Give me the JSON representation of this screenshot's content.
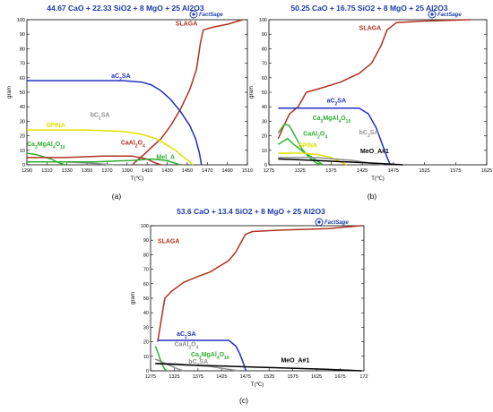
{
  "chart_data": [
    {
      "type": "line",
      "panel_label": "(a)",
      "title": "44.67 CaO +  22.33 SiO2 +  8 MgO +  25 Al2O3",
      "xlabel": "T(℃)",
      "ylabel": "gram",
      "xlim": [
        1290,
        1520
      ],
      "ylim": [
        0,
        100
      ],
      "x_ticks": [
        "1290",
        "1310",
        "1330",
        "1350",
        "1370",
        "1390",
        "1410",
        "1430",
        "1450",
        "1470",
        "1490",
        "1510"
      ],
      "y_ticks": [
        "0",
        "10",
        "20",
        "30",
        "40",
        "50",
        "60",
        "70",
        "80",
        "90",
        "100"
      ],
      "grid": false,
      "series": [
        {
          "name": "SLAGA",
          "color": "#b03020",
          "label_at": [
            1445,
            96
          ],
          "points": [
            [
              1400,
              0
            ],
            [
              1405,
              3
            ],
            [
              1412,
              7
            ],
            [
              1420,
              12
            ],
            [
              1430,
              18
            ],
            [
              1440,
              27
            ],
            [
              1450,
              38
            ],
            [
              1460,
              52
            ],
            [
              1467,
              66
            ],
            [
              1471,
              84
            ],
            [
              1474,
              93
            ],
            [
              1485,
              95
            ],
            [
              1500,
              97
            ],
            [
              1515,
              100
            ]
          ]
        },
        {
          "name": "aC2SA",
          "color": "#2030c0",
          "label_at": [
            1378,
            60
          ],
          "points": [
            [
              1290,
              58
            ],
            [
              1390,
              58
            ],
            [
              1410,
              57
            ],
            [
              1420,
              55
            ],
            [
              1430,
              51
            ],
            [
              1440,
              45
            ],
            [
              1450,
              37
            ],
            [
              1460,
              27
            ],
            [
              1466,
              18
            ],
            [
              1470,
              8
            ],
            [
              1472,
              0
            ]
          ]
        },
        {
          "name": "SPINA",
          "color": "#e0e000",
          "label_at": [
            1310,
            26
          ],
          "points": [
            [
              1290,
              24
            ],
            [
              1350,
              24
            ],
            [
              1390,
              23
            ],
            [
              1410,
              21
            ],
            [
              1425,
              18
            ],
            [
              1435,
              14
            ],
            [
              1445,
              10
            ],
            [
              1452,
              6
            ],
            [
              1458,
              3
            ],
            [
              1463,
              0
            ]
          ]
        },
        {
          "name": "bC2SA",
          "color": "#909090",
          "label_at": [
            1356,
            33
          ],
          "points": [
            [
              1290,
              2
            ],
            [
              1330,
              2
            ],
            [
              1360,
              1
            ],
            [
              1380,
              0
            ]
          ]
        },
        {
          "name": "Ca3MgAl4O10",
          "color": "#30b030",
          "label_at": [
            1290,
            13
          ],
          "points": [
            [
              1290,
              8
            ],
            [
              1300,
              7
            ],
            [
              1315,
              4
            ],
            [
              1325,
              1
            ],
            [
              1330,
              0
            ]
          ]
        },
        {
          "name": "CaAl2O4",
          "color": "#b03020",
          "label_at": [
            1388,
            14
          ],
          "points": [
            [
              1290,
              5
            ],
            [
              1330,
              5
            ],
            [
              1370,
              6
            ],
            [
              1400,
              6
            ],
            [
              1415,
              4
            ],
            [
              1425,
              1
            ],
            [
              1430,
              0
            ]
          ]
        },
        {
          "name": "Mel_A",
          "color": "#30b030",
          "label_at": [
            1425,
            4
          ],
          "points": [
            [
              1290,
              2
            ],
            [
              1360,
              2
            ],
            [
              1400,
              3
            ],
            [
              1420,
              4
            ],
            [
              1435,
              3
            ],
            [
              1445,
              1
            ],
            [
              1450,
              0
            ]
          ]
        }
      ]
    },
    {
      "type": "line",
      "panel_label": "(b)",
      "title": "50.25 CaO +  16.75 SiO2 +  8 MgO +  25 Al2O3",
      "xlabel": "T(℃)",
      "ylabel": "gram",
      "xlim": [
        1275,
        1625
      ],
      "ylim": [
        0,
        100
      ],
      "x_ticks": [
        "1275",
        "1325",
        "1375",
        "1425",
        "1475",
        "1525",
        "1575",
        "1625"
      ],
      "y_ticks": [
        "0",
        "10",
        "20",
        "30",
        "40",
        "50",
        "60",
        "70",
        "80",
        "90",
        "100"
      ],
      "grid": false,
      "series": [
        {
          "name": "SLAGA",
          "color": "#b03020",
          "label_at": [
            1420,
            93
          ],
          "points": [
            [
              1290,
              18
            ],
            [
              1298,
              26
            ],
            [
              1308,
              35
            ],
            [
              1322,
              40
            ],
            [
              1335,
              50
            ],
            [
              1360,
              53
            ],
            [
              1390,
              57
            ],
            [
              1420,
              63
            ],
            [
              1440,
              70
            ],
            [
              1455,
              82
            ],
            [
              1465,
              93
            ],
            [
              1480,
              98
            ],
            [
              1520,
              99
            ],
            [
              1600,
              100
            ]
          ]
        },
        {
          "name": "aC2SA",
          "color": "#2030c0",
          "label_at": [
            1368,
            43
          ],
          "points": [
            [
              1290,
              39
            ],
            [
              1420,
              39
            ],
            [
              1435,
              35
            ],
            [
              1448,
              25
            ],
            [
              1458,
              13
            ],
            [
              1465,
              5
            ],
            [
              1470,
              0
            ]
          ]
        },
        {
          "name": "Ca3MgAl4O10",
          "color": "#30b030",
          "label_at": [
            1345,
            31
          ],
          "points": [
            [
              1290,
              22
            ],
            [
              1300,
              28
            ],
            [
              1308,
              27
            ],
            [
              1318,
              19
            ],
            [
              1328,
              11
            ],
            [
              1340,
              5
            ],
            [
              1352,
              1
            ],
            [
              1360,
              0
            ]
          ]
        },
        {
          "name": "CaAl2O4",
          "color": "#30b030",
          "label_at": [
            1330,
            20
          ],
          "points": [
            [
              1290,
              14
            ],
            [
              1305,
              18
            ],
            [
              1315,
              14
            ],
            [
              1330,
              9
            ],
            [
              1345,
              5
            ],
            [
              1355,
              2
            ],
            [
              1362,
              0
            ]
          ]
        },
        {
          "name": "SPINA",
          "color": "#e0e000",
          "label_at": [
            1322,
            12
          ],
          "points": [
            [
              1290,
              8
            ],
            [
              1330,
              8
            ],
            [
              1355,
              7
            ],
            [
              1375,
              5
            ],
            [
              1390,
              2
            ],
            [
              1400,
              0
            ]
          ]
        },
        {
          "name": "bC2SA",
          "color": "#909090",
          "label_at": [
            1420,
            21
          ],
          "points": [
            [
              1290,
              5
            ],
            [
              1350,
              5
            ],
            [
              1380,
              4
            ],
            [
              1410,
              3
            ],
            [
              1440,
              1
            ],
            [
              1460,
              0
            ]
          ]
        },
        {
          "name": "MeO_A#1",
          "color": "#000000",
          "label_at": [
            1422,
            8
          ],
          "points": [
            [
              1290,
              4
            ],
            [
              1350,
              3
            ],
            [
              1400,
              2
            ],
            [
              1450,
              1
            ],
            [
              1490,
              0
            ]
          ]
        }
      ]
    },
    {
      "type": "line",
      "panel_label": "(c)",
      "title": "53.6 CaO +  13.4 SiO2 +  8 MgO +  25 Al2O3",
      "xlabel": "T(℃)",
      "ylabel": "gram",
      "xlim": [
        1275,
        1725
      ],
      "ylim": [
        0,
        100
      ],
      "x_ticks": [
        "1275",
        "1325",
        "1375",
        "1425",
        "1475",
        "1525",
        "1575",
        "1625",
        "1675",
        "172"
      ],
      "y_ticks": [
        "0",
        "10",
        "20",
        "30",
        "40",
        "50",
        "60",
        "70",
        "80",
        "90",
        "100"
      ],
      "grid": false,
      "series": [
        {
          "name": "SLAGA",
          "color": "#b03020",
          "label_at": [
            1290,
            88
          ],
          "points": [
            [
              1290,
              20
            ],
            [
              1300,
              40
            ],
            [
              1305,
              50
            ],
            [
              1320,
              55
            ],
            [
              1345,
              61
            ],
            [
              1375,
              65
            ],
            [
              1400,
              68
            ],
            [
              1420,
              72
            ],
            [
              1440,
              76
            ],
            [
              1455,
              82
            ],
            [
              1465,
              88
            ],
            [
              1475,
              94
            ],
            [
              1490,
              96
            ],
            [
              1550,
              97
            ],
            [
              1650,
              98
            ],
            [
              1720,
              100
            ]
          ]
        },
        {
          "name": "aC2SA",
          "color": "#2030c0",
          "label_at": [
            1330,
            24
          ],
          "points": [
            [
              1290,
              21
            ],
            [
              1400,
              21
            ],
            [
              1440,
              21
            ],
            [
              1455,
              17
            ],
            [
              1463,
              12
            ],
            [
              1470,
              6
            ],
            [
              1476,
              0
            ]
          ]
        },
        {
          "name": "CaAl2O4",
          "color": "#909090",
          "label_at": [
            1325,
            17
          ],
          "points": [
            [
              1285,
              8
            ],
            [
              1300,
              6
            ],
            [
              1320,
              3
            ],
            [
              1335,
              1
            ],
            [
              1345,
              0
            ]
          ]
        },
        {
          "name": "Ca3MgAl4O10",
          "color": "#30b030",
          "label_at": [
            1360,
            10
          ],
          "points": [
            [
              1285,
              17
            ],
            [
              1290,
              13
            ],
            [
              1295,
              8
            ],
            [
              1300,
              4
            ],
            [
              1305,
              1
            ],
            [
              1310,
              0
            ]
          ]
        },
        {
          "name": "bC2SA",
          "color": "#909090",
          "label_at": [
            1355,
            5
          ],
          "points": [
            [
              1285,
              5
            ],
            [
              1320,
              5
            ],
            [
              1360,
              4
            ],
            [
              1400,
              3
            ],
            [
              1440,
              1
            ],
            [
              1460,
              0
            ]
          ]
        },
        {
          "name": "MeO_A#1",
          "color": "#000000",
          "label_at": [
            1550,
            6
          ],
          "points": [
            [
              1285,
              5
            ],
            [
              1350,
              4
            ],
            [
              1450,
              3
            ],
            [
              1550,
              2
            ],
            [
              1650,
              1
            ],
            [
              1720,
              0
            ]
          ]
        }
      ]
    }
  ],
  "logo": {
    "text": "FactSage",
    "color": "#1a3aa8"
  }
}
